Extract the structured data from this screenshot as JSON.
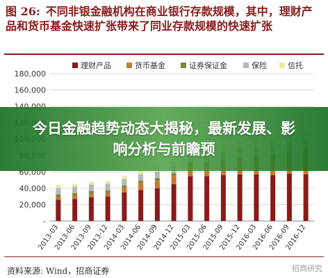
{
  "figure": {
    "number": "图 26:",
    "title": "不同非银金融机构在商业银行存款规模，其中，理财产品和货币基金快速扩张带来了同业存款规模的快速扩张",
    "source": "资料来源: Wind，招商证券",
    "watermark": "招商研究"
  },
  "banner": {
    "text": "今日金融趋势动态大揭秘，最新发展、影响分析与前瞻预"
  },
  "chart_data": {
    "type": "bar",
    "stacked": true,
    "ylim": [
      0,
      180000
    ],
    "yticks": [
      0,
      20000,
      40000,
      60000,
      80000,
      100000,
      120000,
      140000,
      160000,
      180000
    ],
    "ytick_labels": [
      "-",
      "20,000",
      "40,000",
      "60,000",
      "80,000",
      "100,000",
      "120,000",
      "140,000",
      "160,000",
      "180,000"
    ],
    "legend_position": "top",
    "categories": [
      "2013-03",
      "2013-06",
      "2013-09",
      "2013-12",
      "2014-03",
      "2014-06",
      "2014-09",
      "2014-12",
      "2015-03",
      "2015-06",
      "2015-09",
      "2015-12",
      "2016-03",
      "2016-06",
      "2016-09",
      "2016-12"
    ],
    "series": [
      {
        "name": "理财产品",
        "color": "#8b1a1a",
        "values": [
          26000,
          27000,
          29000,
          30000,
          35000,
          38000,
          40000,
          45000,
          55000,
          55000,
          56000,
          57000,
          57000,
          56000,
          58000,
          57000
        ]
      },
      {
        "name": "货币基金",
        "color": "#c8782a",
        "values": [
          3000,
          3500,
          4000,
          4000,
          5000,
          8000,
          9000,
          10000,
          12000,
          13000,
          14000,
          15000,
          18000,
          20000,
          22000,
          24000
        ]
      },
      {
        "name": "证券保证金",
        "color": "#7a8a3a",
        "values": [
          3500,
          3500,
          3500,
          3500,
          3500,
          3500,
          3500,
          3500,
          4000,
          5000,
          5000,
          5000,
          5000,
          5000,
          5000,
          5000
        ]
      },
      {
        "name": "保险",
        "color": "#b8b8b8",
        "values": [
          8000,
          8000,
          8000,
          8000,
          8000,
          8000,
          8000,
          8000,
          9000,
          9000,
          10000,
          10000,
          11000,
          11000,
          12000,
          12000
        ]
      },
      {
        "name": "信托",
        "color": "#f3e6a2",
        "values": [
          3500,
          3500,
          3500,
          3500,
          4000,
          5000,
          6000,
          7000,
          8000,
          8000,
          8000,
          8500,
          9000,
          9000,
          10000,
          10000
        ]
      }
    ]
  }
}
